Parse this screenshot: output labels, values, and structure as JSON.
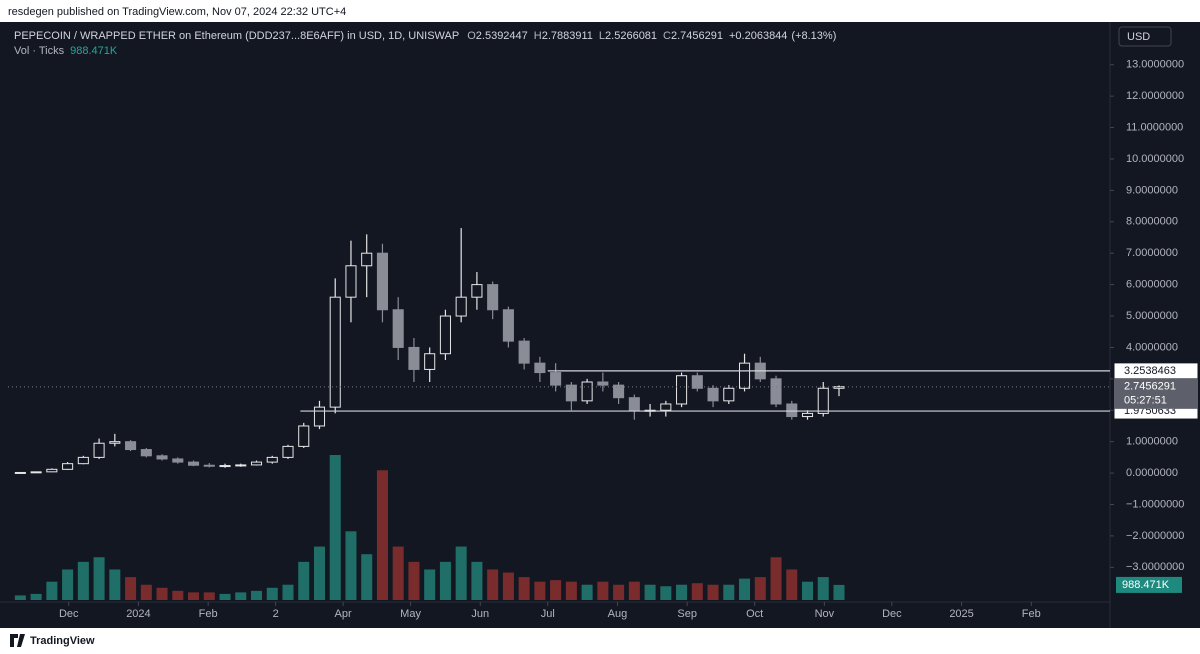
{
  "header": {
    "published": "resdegen published on TradingView.com, Nov 07, 2024 22:32 UTC+4",
    "symbol": "PEPECOIN / WRAPPED ETHER on Ethereum (DDD237...8E6AFF) in USD, 1D, UNISWAP",
    "ohlc_letters": [
      "O",
      "H",
      "L",
      "C"
    ],
    "ohlc": [
      2.5392447,
      2.7883911,
      2.5266081,
      2.7456291
    ],
    "change": {
      "value": 0.2063844,
      "label": "+0.2063844"
    },
    "change_pct": {
      "value": 8.13,
      "label": "(+8.13%)"
    },
    "volume_title": "Vol · Ticks",
    "currency": "USD"
  },
  "footer": {
    "brand": "TradingView"
  },
  "chart_data": {
    "type": "candlestick",
    "x": [
      "2023-11-06",
      "2023-11-13",
      "2023-11-20",
      "2023-11-27",
      "2023-12-04",
      "2023-12-11",
      "2023-12-18",
      "2023-12-25",
      "2024-01-01",
      "2024-01-08",
      "2024-01-15",
      "2024-01-22",
      "2024-01-29",
      "2024-02-05",
      "2024-02-12",
      "2024-02-19",
      "2024-02-26",
      "2024-03-04",
      "2024-03-11",
      "2024-03-18",
      "2024-03-25",
      "2024-04-01",
      "2024-04-08",
      "2024-04-15",
      "2024-04-22",
      "2024-04-29",
      "2024-05-06",
      "2024-05-13",
      "2024-05-20",
      "2024-05-27",
      "2024-06-03",
      "2024-06-10",
      "2024-06-17",
      "2024-06-24",
      "2024-07-01",
      "2024-07-08",
      "2024-07-15",
      "2024-07-22",
      "2024-07-29",
      "2024-08-05",
      "2024-08-12",
      "2024-08-19",
      "2024-08-26",
      "2024-09-02",
      "2024-09-09",
      "2024-09-16",
      "2024-09-23",
      "2024-09-30",
      "2024-10-07",
      "2024-10-14",
      "2024-10-21",
      "2024-10-28",
      "2024-11-04"
    ],
    "open": [
      0.01,
      0.02,
      0.04,
      0.12,
      0.3,
      0.5,
      0.95,
      1.0,
      0.75,
      0.55,
      0.45,
      0.35,
      0.25,
      0.22,
      0.24,
      0.26,
      0.35,
      0.5,
      0.85,
      1.5,
      2.1,
      5.6,
      6.6,
      7.0,
      5.2,
      4.0,
      3.3,
      3.8,
      5.0,
      5.6,
      6.0,
      5.2,
      4.2,
      3.5,
      3.2,
      2.8,
      2.3,
      2.9,
      2.8,
      2.4,
      2.0,
      2.0,
      2.2,
      3.1,
      2.7,
      2.3,
      2.7,
      3.5,
      3.0,
      2.2,
      1.8,
      1.9,
      2.7
    ],
    "high": [
      0.03,
      0.05,
      0.15,
      0.35,
      0.55,
      1.1,
      1.25,
      1.05,
      0.8,
      0.6,
      0.5,
      0.4,
      0.32,
      0.3,
      0.3,
      0.4,
      0.55,
      0.9,
      1.6,
      2.3,
      6.2,
      7.4,
      7.6,
      7.3,
      5.6,
      4.3,
      4.0,
      5.2,
      7.8,
      6.4,
      6.1,
      5.3,
      4.3,
      3.7,
      3.5,
      2.9,
      3.0,
      3.2,
      2.9,
      2.5,
      2.2,
      2.3,
      3.2,
      3.2,
      2.8,
      2.8,
      3.8,
      3.7,
      3.1,
      2.3,
      2.0,
      2.9,
      2.79
    ],
    "low": [
      0.0,
      0.01,
      0.03,
      0.1,
      0.28,
      0.45,
      0.85,
      0.7,
      0.5,
      0.4,
      0.3,
      0.22,
      0.18,
      0.17,
      0.2,
      0.24,
      0.3,
      0.45,
      0.8,
      1.4,
      1.9,
      4.8,
      5.6,
      4.8,
      3.6,
      2.9,
      2.9,
      3.6,
      4.8,
      5.2,
      4.9,
      4.0,
      3.3,
      2.9,
      2.6,
      2.0,
      2.2,
      2.6,
      2.2,
      1.7,
      1.8,
      1.8,
      2.1,
      2.6,
      2.1,
      2.2,
      2.6,
      2.9,
      2.1,
      1.7,
      1.7,
      1.8,
      2.45
    ],
    "close": [
      0.02,
      0.04,
      0.12,
      0.3,
      0.5,
      0.95,
      1.0,
      0.75,
      0.55,
      0.45,
      0.35,
      0.25,
      0.22,
      0.24,
      0.26,
      0.35,
      0.5,
      0.85,
      1.5,
      2.1,
      5.6,
      6.6,
      7.0,
      5.2,
      4.0,
      3.3,
      3.8,
      5.0,
      5.6,
      6.0,
      5.2,
      4.2,
      3.5,
      3.2,
      2.8,
      2.3,
      2.9,
      2.8,
      2.4,
      2.0,
      2.0,
      2.2,
      3.1,
      2.7,
      2.3,
      2.7,
      3.5,
      3.0,
      2.2,
      1.8,
      1.9,
      2.7,
      2.75
    ],
    "volume": [
      300000,
      400000,
      1200000,
      2000000,
      2500000,
      2800000,
      2000000,
      1500000,
      1000000,
      800000,
      600000,
      500000,
      500000,
      400000,
      500000,
      600000,
      800000,
      1000000,
      2500000,
      3500000,
      9500000,
      4500000,
      3000000,
      8500000,
      3500000,
      2500000,
      2000000,
      2500000,
      3500000,
      2500000,
      2000000,
      1800000,
      1500000,
      1200000,
      1300000,
      1200000,
      1000000,
      1200000,
      1000000,
      1200000,
      1000000,
      900000,
      1000000,
      1100000,
      1000000,
      1000000,
      1400000,
      1500000,
      2800000,
      2000000,
      1200000,
      1500000,
      988471
    ],
    "up_color": "#e6e6e6",
    "down_color": "#8a8d96",
    "volume_up_color": "#1f6f68",
    "volume_down_color": "#7a2c2c",
    "xlim": [
      "2023-11-04",
      "2025-03-08"
    ],
    "xticks": [
      {
        "value": "2023-12-01",
        "label": "Dec"
      },
      {
        "value": "2024-01-01",
        "label": "2024"
      },
      {
        "value": "2024-02-01",
        "label": "Feb"
      },
      {
        "value": "2024-03-02",
        "label": "2"
      },
      {
        "value": "2024-04-01",
        "label": "Apr"
      },
      {
        "value": "2024-05-01",
        "label": "May"
      },
      {
        "value": "2024-06-01",
        "label": "Jun"
      },
      {
        "value": "2024-07-01",
        "label": "Jul"
      },
      {
        "value": "2024-08-01",
        "label": "Aug"
      },
      {
        "value": "2024-09-01",
        "label": "Sep"
      },
      {
        "value": "2024-10-01",
        "label": "Oct"
      },
      {
        "value": "2024-11-01",
        "label": "Nov"
      },
      {
        "value": "2024-12-01",
        "label": "Dec"
      },
      {
        "value": "2025-01-01",
        "label": "2025"
      },
      {
        "value": "2025-02-01",
        "label": "Feb"
      }
    ],
    "ylim": [
      -4.04,
      14.36
    ],
    "yticks": [
      {
        "value": 13,
        "label": "13.0000000"
      },
      {
        "value": 12,
        "label": "12.0000000"
      },
      {
        "value": 11,
        "label": "11.0000000"
      },
      {
        "value": 10,
        "label": "10.0000000"
      },
      {
        "value": 9,
        "label": "9.0000000"
      },
      {
        "value": 8,
        "label": "8.0000000"
      },
      {
        "value": 7,
        "label": "7.0000000"
      },
      {
        "value": 6,
        "label": "6.0000000"
      },
      {
        "value": 5,
        "label": "5.0000000"
      },
      {
        "value": 4,
        "label": "4.0000000"
      },
      {
        "value": 3,
        "label": "3.0000000"
      },
      {
        "value": 2,
        "label": "2.0000000"
      },
      {
        "value": 1,
        "label": "1.0000000"
      },
      {
        "value": 0,
        "label": "0.0000000"
      },
      {
        "value": -1,
        "label": "−1.0000000"
      },
      {
        "value": -2,
        "label": "−2.0000000"
      },
      {
        "value": -3,
        "label": "−3.0000000"
      }
    ],
    "levels": [
      {
        "value": 3.2538463,
        "start": "2024-07-01"
      },
      {
        "value": 1.9750633,
        "start": "2024-03-13"
      }
    ],
    "last_price": 2.7456291,
    "countdown": "05:27:51",
    "last_volume": {
      "value": 988471,
      "label": "988.471K"
    }
  }
}
